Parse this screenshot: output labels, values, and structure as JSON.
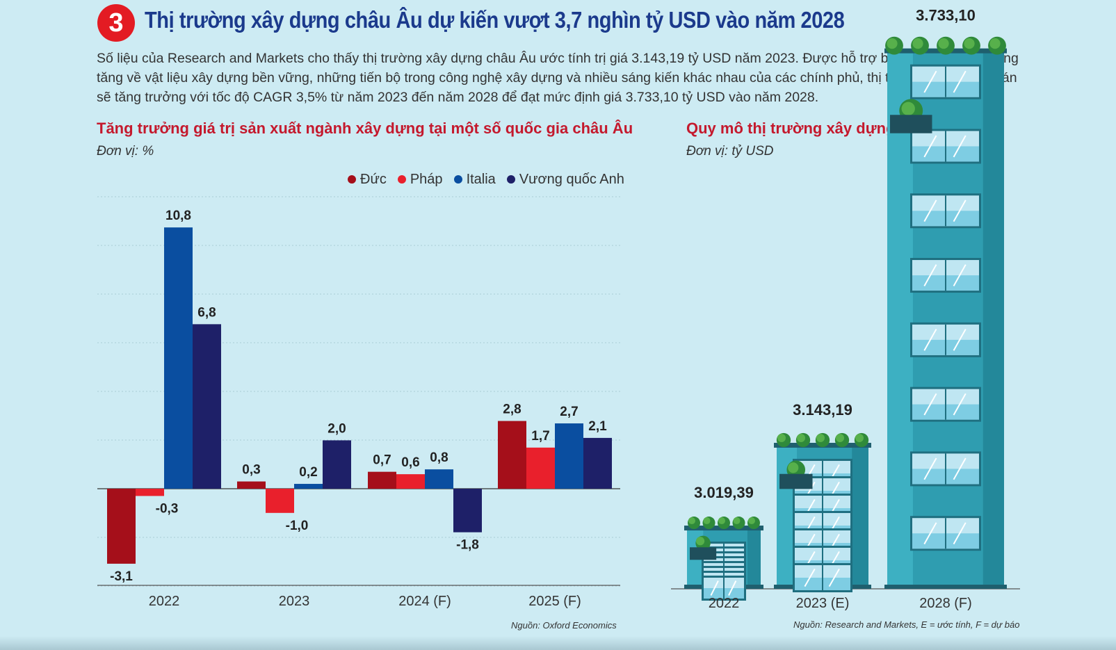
{
  "header": {
    "number": "3",
    "title": "Thị trường xây dựng châu Âu dự kiến vượt 3,7 nghìn tỷ USD vào năm 2028",
    "intro": "Số liệu của Research and Markets cho thấy thị trường xây dựng châu Âu ước tính trị giá 3.143,19 tỷ USD năm 2023. Được hỗ trợ bởi nhu cầu ngày càng tăng về vật liệu xây dựng bền vững, những tiến bộ trong công nghệ xây dựng và nhiều sáng kiến khác nhau của các chính phủ, thị trường được dự đoán sẽ tăng trưởng với tốc độ CAGR 3,5% từ năm 2023 đến năm 2028 để đạt mức định giá 3.733,10 tỷ USD vào năm 2028."
  },
  "left_chart": {
    "unit": "Đơn vị: %",
    "source": "Nguồn: Oxford Economics"
  },
  "right_chart": {
    "unit": "Đơn vị: tỷ USD",
    "source": "Nguồn: Research and Markets, E = ước tính, F = dự báo"
  },
  "chart_data": [
    {
      "type": "bar",
      "title": "Tăng trưởng giá trị sản xuất ngành xây dựng tại một số quốc gia châu Âu",
      "categories": [
        "2022",
        "2023",
        "2024 (F)",
        "2025 (F)"
      ],
      "series": [
        {
          "name": "Đức",
          "color": "#a50f1a",
          "values": [
            -3.1,
            0.3,
            0.7,
            2.8
          ],
          "labels": [
            "-3,1",
            "0,3",
            "0,7",
            "2,8"
          ]
        },
        {
          "name": "Pháp",
          "color": "#e9202c",
          "values": [
            -0.3,
            -1.0,
            0.6,
            1.7
          ],
          "labels": [
            "-0,3",
            "-1,0",
            "0,6",
            "1,7"
          ]
        },
        {
          "name": "Italia",
          "color": "#0a4ea0",
          "values": [
            10.8,
            0.2,
            0.8,
            2.7
          ],
          "labels": [
            "10,8",
            "0,2",
            "0,8",
            "2,7"
          ]
        },
        {
          "name": "Vương quốc Anh",
          "color": "#1e2068",
          "values": [
            6.8,
            2.0,
            -1.8,
            2.1
          ],
          "labels": [
            "6,8",
            "2,0",
            "-1,8",
            "2,1"
          ]
        }
      ],
      "legend": "top-right",
      "grid": true
    },
    {
      "type": "bar",
      "title": "Quy mô thị trường xây dựng châu Âu",
      "categories": [
        "2022",
        "2023 (E)",
        "2028 (F)"
      ],
      "values": [
        3019.39,
        3143.19,
        3733.1
      ],
      "labels": [
        "3.019,39",
        "3.143,19",
        "3.733,10"
      ]
    }
  ]
}
